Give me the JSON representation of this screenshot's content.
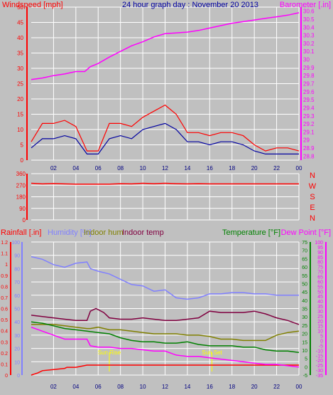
{
  "chart_data": [
    {
      "type": "line",
      "title": "24 hour graph day : November 20 2013",
      "left_axis_label": "Windspeed [mph]",
      "right_axis_label": "Barometer [.in]",
      "x_ticks": [
        "02",
        "04",
        "06",
        "08",
        "10",
        "12",
        "14",
        "16",
        "18",
        "20",
        "22",
        "00"
      ],
      "left_ticks": [
        "0",
        "5",
        "10",
        "15",
        "20",
        "25",
        "30",
        "35",
        "40",
        "45",
        "50"
      ],
      "left_range": [
        0,
        50
      ],
      "right_ticks": [
        "28.8",
        "28.9",
        "29",
        "29.1",
        "29.2",
        "29.3",
        "29.4",
        "29.5",
        "29.6",
        "29.7",
        "29.8",
        "29.9",
        "30",
        "30.1",
        "30.2",
        "30.3",
        "30.4",
        "30.5",
        "30.6"
      ],
      "right_range": [
        28.75,
        30.65
      ],
      "x_range": [
        0,
        24
      ],
      "colors": {
        "windspeed": "#ff0000",
        "wind_avg": "#0000a0",
        "barometer": "#ff00ff",
        "grid": "#ffffff"
      },
      "series": [
        {
          "role": "barometer",
          "axis": "right",
          "x": [
            0,
            1,
            2,
            3,
            4,
            4.8,
            5.3,
            6,
            7,
            8,
            9,
            10,
            11,
            12,
            13,
            14,
            15,
            16,
            17,
            18,
            19,
            20,
            21,
            22,
            23,
            24
          ],
          "values": [
            29.75,
            29.77,
            29.8,
            29.82,
            29.85,
            29.85,
            29.91,
            29.95,
            30.03,
            30.1,
            30.17,
            30.22,
            30.28,
            30.32,
            30.33,
            30.34,
            30.36,
            30.39,
            30.42,
            30.45,
            30.47,
            30.49,
            30.51,
            30.53,
            30.55,
            30.58
          ]
        },
        {
          "role": "windspeed",
          "axis": "left",
          "x": [
            0,
            1,
            2,
            3,
            4,
            5,
            6,
            7,
            8,
            9,
            10,
            11,
            12,
            13,
            14,
            15,
            16,
            17,
            18,
            19,
            20,
            21,
            22,
            23,
            24
          ],
          "values": [
            6,
            12,
            12,
            13,
            11,
            3,
            3,
            12,
            12,
            11,
            14,
            16,
            18,
            15,
            9,
            9,
            8,
            9,
            9,
            8,
            5,
            3,
            4,
            4,
            3
          ]
        },
        {
          "role": "wind_avg",
          "axis": "left",
          "x": [
            0,
            1,
            2,
            3,
            4,
            5,
            6,
            7,
            8,
            9,
            10,
            11,
            12,
            13,
            14,
            15,
            16,
            17,
            18,
            19,
            20,
            21,
            22,
            23,
            24
          ],
          "values": [
            4,
            7,
            7,
            8,
            7,
            2,
            2,
            7,
            8,
            7,
            10,
            11,
            12,
            10,
            6,
            6,
            5,
            6,
            6,
            5,
            3,
            2,
            2,
            2,
            2
          ]
        }
      ]
    },
    {
      "type": "line",
      "right_labels": [
        "N",
        "W",
        "S",
        "E",
        "N"
      ],
      "left_ticks": [
        "0",
        "90",
        "180",
        "270",
        "360"
      ],
      "y_range": [
        0,
        360
      ],
      "x_range": [
        0,
        24
      ],
      "series": [
        {
          "role": "wind_direction",
          "color": "#ff0000",
          "x": [
            0,
            1,
            2,
            3,
            4,
            5,
            6,
            7,
            8,
            9,
            10,
            11,
            12,
            13,
            14,
            15,
            16,
            17,
            18,
            19,
            20,
            21,
            22,
            23,
            24
          ],
          "values": [
            285,
            280,
            283,
            280,
            278,
            278,
            278,
            278,
            282,
            280,
            285,
            282,
            285,
            282,
            280,
            282,
            280,
            280,
            280,
            280,
            280,
            280,
            280,
            280,
            280
          ]
        }
      ]
    },
    {
      "type": "line",
      "labels": {
        "rainfall": "Rainfall [.in]",
        "humidity": "Humidity [%]",
        "indoor_hum": "Indoor hum",
        "indoor_temp": "Indoor temp",
        "temperature": "Temperature [°F]",
        "dew_point": "Dew Point [°F]"
      },
      "annotations": [
        "Sun Rise",
        "Sun Set"
      ],
      "annotation_x": [
        7.0,
        16.2
      ],
      "x_ticks": [
        "02",
        "04",
        "06",
        "08",
        "10",
        "12",
        "14",
        "16",
        "18",
        "20",
        "22",
        "00"
      ],
      "x_range": [
        0,
        24
      ],
      "rain_ticks": [
        "0",
        "0.1",
        "0.2",
        "0.3",
        "0.4",
        "0.5",
        "0.6",
        "0.7",
        "0.8",
        "0.9",
        "1",
        "1.1",
        "1.2"
      ],
      "rain_range": [
        0,
        1.2
      ],
      "humidity_ticks": [
        "0",
        "10",
        "20",
        "30",
        "40",
        "50",
        "60",
        "70",
        "80",
        "90",
        "100"
      ],
      "humidity_range": [
        0,
        100
      ],
      "temp_ticks": [
        "-5",
        "0",
        "5",
        "10",
        "15",
        "20",
        "25",
        "30",
        "35",
        "40",
        "45",
        "50",
        "55",
        "60",
        "65",
        "70",
        "75"
      ],
      "temp_range": [
        -5,
        75
      ],
      "dew_ticks": [
        "-35",
        "-30",
        "-25",
        "-20",
        "-15",
        "-10",
        "-5",
        "0",
        "5",
        "10",
        "15",
        "20",
        "25",
        "30",
        "35",
        "40",
        "45",
        "50",
        "55",
        "60",
        "65",
        "70",
        "75",
        "80",
        "85",
        "90",
        "95",
        "100"
      ],
      "colors": {
        "rainfall": "#ff0000",
        "humidity": "#8080ff",
        "indoor_hum": "#808000",
        "indoor_temp": "#800040",
        "temperature": "#008000",
        "dew_point": "#ff00ff"
      },
      "series": [
        {
          "role": "rainfall",
          "axis": "rain",
          "x": [
            0,
            0.6,
            1,
            2,
            3,
            3.2,
            4,
            5,
            5.3,
            6,
            24
          ],
          "values": [
            0,
            0.02,
            0.04,
            0.05,
            0.06,
            0.07,
            0.07,
            0.09,
            0.09,
            0.09,
            0.09
          ]
        },
        {
          "role": "humidity",
          "axis": "humidity",
          "x": [
            0,
            1,
            2,
            3,
            4,
            5,
            5.3,
            6,
            7,
            8,
            9,
            10,
            11,
            12,
            13,
            14,
            15,
            16,
            17,
            18,
            19,
            20,
            21,
            22,
            23,
            24
          ],
          "values": [
            89,
            87,
            83,
            81,
            84,
            85,
            80,
            78,
            76,
            72,
            68,
            67,
            63,
            64,
            58,
            57,
            58,
            61,
            61,
            62,
            62,
            61,
            61,
            60,
            60,
            60
          ]
        },
        {
          "role": "indoor_hum",
          "axis": "humidity",
          "x": [
            0,
            1,
            2,
            3,
            4,
            5,
            5.3,
            6,
            7,
            8,
            9,
            10,
            11,
            12,
            13,
            14,
            15,
            16,
            17,
            18,
            19,
            20,
            21,
            22,
            23,
            24
          ],
          "values": [
            38,
            38,
            38,
            37,
            36,
            35,
            35,
            36,
            34,
            34,
            33,
            32,
            31,
            31,
            31,
            30,
            30,
            29,
            27,
            27,
            26,
            26,
            26,
            30,
            32,
            33
          ]
        },
        {
          "role": "indoor_temp",
          "axis": "humidity",
          "x": [
            0,
            1,
            2,
            3,
            4,
            5,
            5.3,
            5.8,
            6.5,
            7,
            8,
            9,
            10,
            11,
            12,
            13,
            14,
            15,
            16,
            17,
            18,
            19,
            20,
            21,
            22,
            23,
            24
          ],
          "values": [
            45,
            44,
            43,
            42,
            41,
            41,
            48,
            50,
            47,
            43,
            42,
            42,
            43,
            42,
            41,
            41,
            42,
            43,
            48,
            47,
            47,
            47,
            48,
            46,
            43,
            41,
            38
          ]
        },
        {
          "role": "temperature",
          "axis": "humidity",
          "x": [
            0,
            1,
            2,
            3,
            4,
            5,
            6,
            7,
            8,
            9,
            10,
            11,
            12,
            13,
            14,
            15,
            16,
            17,
            18,
            19,
            20,
            21,
            22,
            23,
            24
          ],
          "values": [
            40,
            39,
            37,
            35,
            34,
            33,
            32,
            31,
            28,
            26,
            25,
            25,
            24,
            24,
            25,
            23,
            22,
            22,
            22,
            21,
            21,
            19,
            18,
            18,
            17
          ]
        },
        {
          "role": "dew_point",
          "axis": "humidity",
          "x": [
            0,
            1,
            2,
            3,
            4,
            5,
            5.3,
            6,
            7,
            8,
            9,
            10,
            11,
            12,
            13,
            14,
            15,
            16,
            17,
            18,
            19,
            20,
            21,
            22,
            23,
            24
          ],
          "values": [
            36,
            33,
            30,
            27,
            27,
            27,
            22,
            21,
            21,
            20,
            20,
            19,
            18,
            18,
            15,
            14,
            14,
            13,
            12,
            11,
            10,
            9,
            8,
            8,
            7,
            6
          ]
        }
      ]
    }
  ]
}
